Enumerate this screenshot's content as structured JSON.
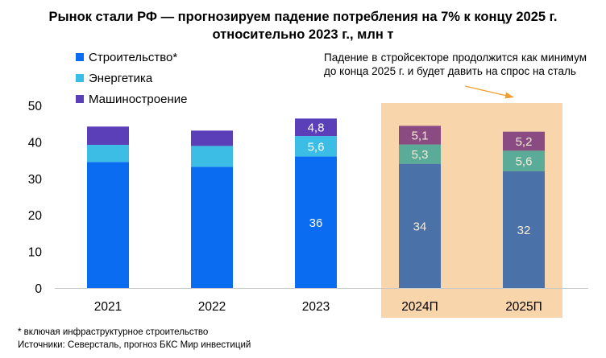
{
  "title_line1": "Рынок стали РФ — прогнозируем падение потребления на 7% к концу 2025 г.",
  "title_line2": "относительно 2023 г., млн т",
  "annotation": "Падение в стройсекторе продолжится как минимум до конца 2025 г. и будет давить на спрос на сталь",
  "footnote_line1": "* включая инфраструктурное строительство",
  "footnote_line2": "Источники: Северсталь, прогноз БКС Мир инвестиций",
  "chart_data": {
    "type": "bar",
    "stacked": true,
    "title": "Рынок стали РФ — прогнозируем падение потребления на 7% к концу 2025 г. относительно 2023 г., млн т",
    "categories": [
      "2021",
      "2022",
      "2023",
      "2024П",
      "2025П"
    ],
    "forecast_categories": [
      "2024П",
      "2025П"
    ],
    "ylim": [
      0,
      50
    ],
    "yticks": [
      0,
      10,
      20,
      30,
      40,
      50
    ],
    "legend_position": "top-left",
    "series": [
      {
        "name": "Строительство*",
        "values": [
          34.5,
          33.2,
          36,
          34,
          32
        ],
        "labels": [
          "",
          "",
          "36",
          "34",
          "32"
        ],
        "color": "#0a6cf0",
        "forecast_color": "#4a72a8"
      },
      {
        "name": "Энергетика",
        "values": [
          4.7,
          5.7,
          5.6,
          5.3,
          5.6
        ],
        "labels": [
          "",
          "",
          "5,6",
          "5,3",
          "5,6"
        ],
        "color": "#3bbde6",
        "forecast_color": "#5aab98"
      },
      {
        "name": "Машиностроение",
        "values": [
          5.0,
          4.2,
          4.8,
          5.1,
          5.2
        ],
        "labels": [
          "",
          "",
          "4,8",
          "5,1",
          "5,2"
        ],
        "color": "#5b3fb8",
        "forecast_color": "#8a4b82"
      }
    ],
    "forecast_highlight_color": "#f9d5ab"
  }
}
